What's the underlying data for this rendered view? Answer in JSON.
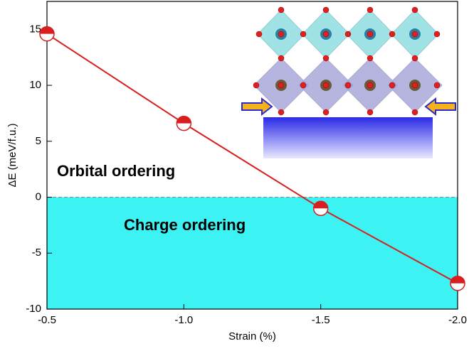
{
  "chart_data": {
    "type": "line",
    "x_label": "Strain (%)",
    "y_label": "ΔE (meV/f.u.)",
    "x": [
      -0.5,
      -1.0,
      -1.5,
      -2.0
    ],
    "values": [
      14.6,
      6.6,
      -1.0,
      -7.7
    ],
    "color": "#d81e1e",
    "xlim": [
      -0.5,
      -2.0
    ],
    "xticks": [
      {
        "value": -0.5,
        "label": "-0.5"
      },
      {
        "value": -1.0,
        "label": "-1.0"
      },
      {
        "value": -1.5,
        "label": "-1.5"
      },
      {
        "value": -2.0,
        "label": "-2.0"
      }
    ],
    "ylim": [
      -10,
      17.5
    ],
    "yticks": [
      -10,
      -5,
      0,
      5,
      10,
      15
    ],
    "reference_line": 0,
    "region_below_color": "#3df2f2",
    "annotations": [
      "Orbital ordering",
      "Charge ordering"
    ]
  }
}
